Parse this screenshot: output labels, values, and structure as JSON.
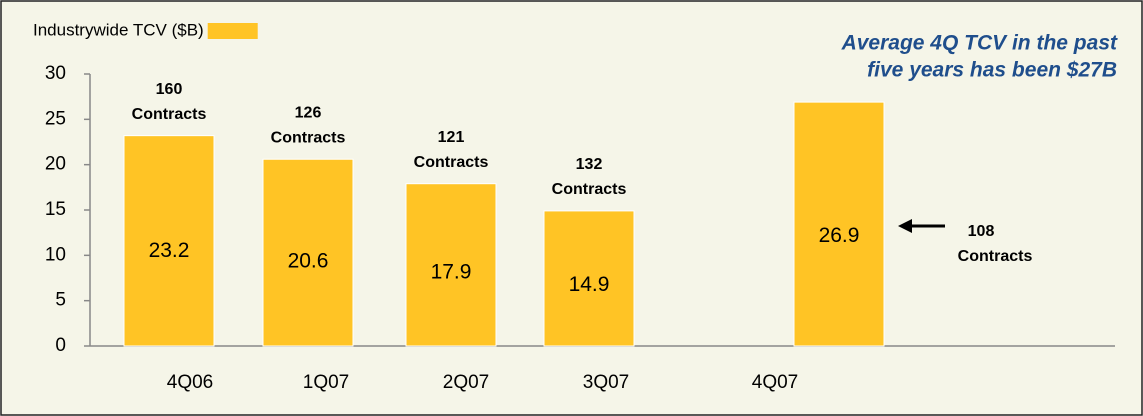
{
  "chart_data": {
    "type": "bar",
    "categories": [
      "4Q06",
      "1Q07",
      "2Q07",
      "3Q07",
      "4Q07"
    ],
    "series": [
      {
        "name": "Industrywide TCV ($B)",
        "color": "#ffc425",
        "values": [
          23.2,
          20.6,
          17.9,
          14.9,
          26.9
        ]
      }
    ],
    "contract_labels": [
      [
        "160",
        "Contracts"
      ],
      [
        "126",
        "Contracts"
      ],
      [
        "121",
        "Contracts"
      ],
      [
        "132",
        "Contracts"
      ],
      [
        "108",
        "Contracts"
      ]
    ],
    "annotation": [
      "Average 4Q TCV in the past",
      "five years has been $27B"
    ],
    "ylim": [
      0,
      30
    ],
    "yticks": [
      0,
      5,
      10,
      15,
      20,
      25,
      30
    ]
  }
}
